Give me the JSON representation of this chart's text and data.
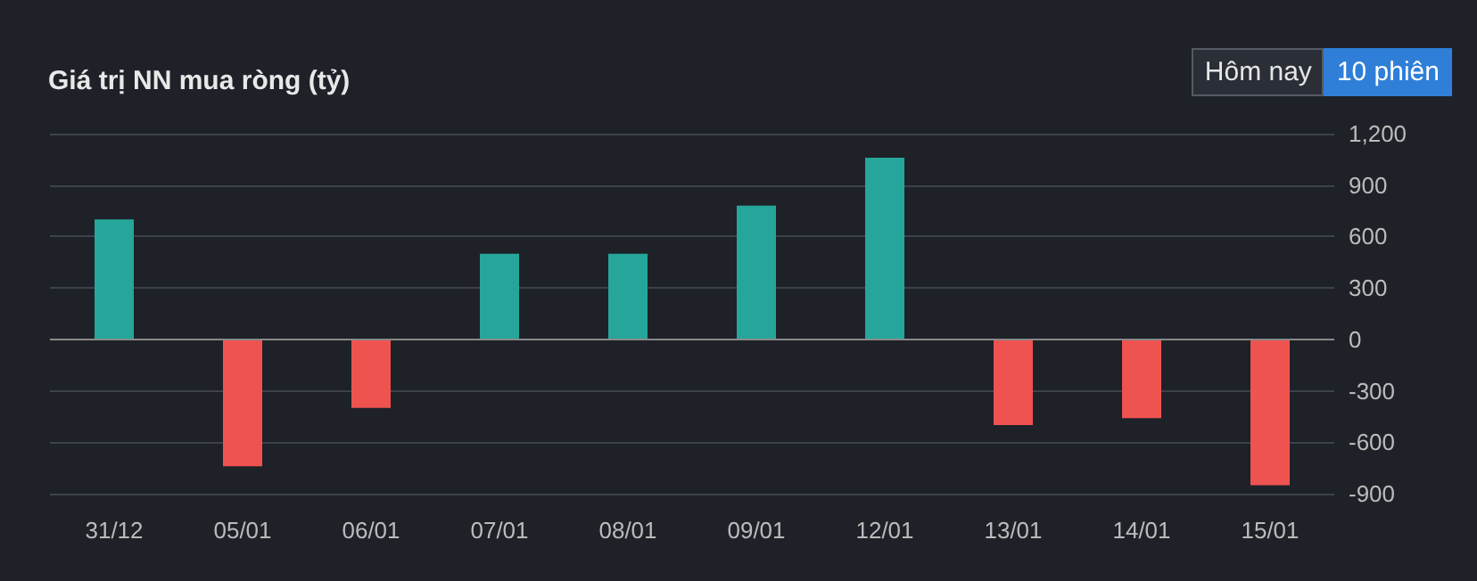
{
  "chart_data": {
    "type": "bar",
    "title": "Giá trị NN mua ròng (tỷ)",
    "annotations": [
      "Hôm nay",
      "10 phiên"
    ],
    "categories": [
      "31/12",
      "05/01",
      "06/01",
      "07/01",
      "08/01",
      "09/01",
      "12/01",
      "13/01",
      "14/01",
      "15/01"
    ],
    "values": [
      700,
      -740,
      -400,
      500,
      500,
      780,
      1060,
      -500,
      -460,
      -850
    ],
    "colors": [
      "#26a69a",
      "#ef5350",
      "#ef5350",
      "#26a69a",
      "#26a69a",
      "#26a69a",
      "#26a69a",
      "#ef5350",
      "#ef5350",
      "#ef5350"
    ],
    "ylim": [
      -900,
      1200
    ],
    "yticks": [
      -900,
      -600,
      -300,
      0,
      300,
      600,
      900,
      {
        "value": 1200,
        "label": "1,200"
      }
    ],
    "grid": "y"
  }
}
